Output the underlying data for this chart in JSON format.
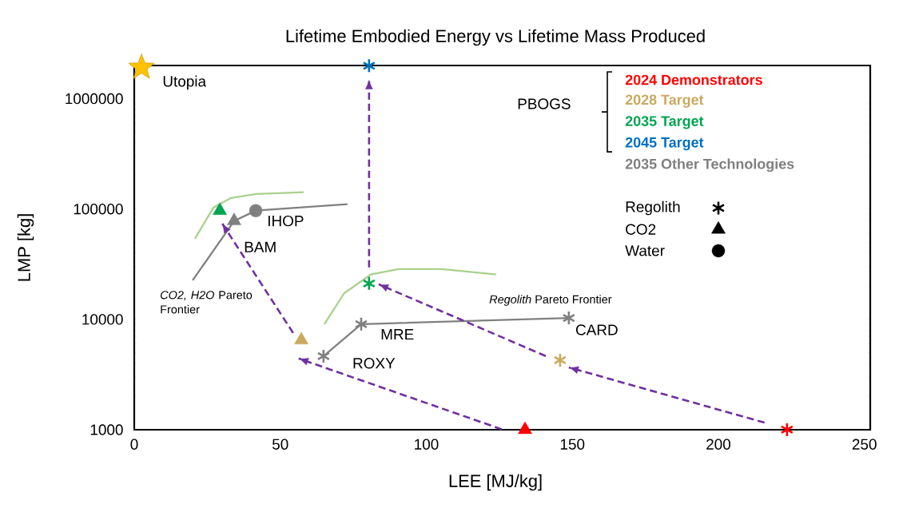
{
  "chart_data": {
    "type": "scatter",
    "title": "Lifetime Embodied Energy vs Lifetime Mass Produced",
    "xlabel": "LEE [MJ/kg]",
    "ylabel": "LMP [kg]",
    "xlim": [
      0,
      252
    ],
    "xticks": [
      0,
      50,
      100,
      150,
      200,
      250
    ],
    "ylim": [
      1000,
      2000000
    ],
    "yticks": [
      1000,
      10000,
      100000,
      1000000
    ],
    "log": "y",
    "grid": false,
    "legend": "top right",
    "series": [
      {
        "type": "line",
        "color": "#a9d18e",
        "marker": "none",
        "line_style": "solid",
        "x": [
          20.8,
          27.1,
          33.1,
          41.8,
          58
        ],
        "values": [
          53900,
          103000,
          126000,
          137000,
          142000
        ]
      },
      {
        "type": "line",
        "color": "#a9d18e",
        "marker": "none",
        "line_style": "solid",
        "x": [
          65.1,
          71.9,
          81,
          90.5,
          105.3,
          123.9
        ],
        "values": [
          9050,
          17300,
          25500,
          28600,
          28600,
          25500
        ]
      },
      {
        "type": "line",
        "color": "#808080",
        "marker": "none",
        "line_style": "solid",
        "x": [
          20,
          34.2,
          41.6,
          73
        ],
        "values": [
          22600,
          78000,
          96700,
          110500
        ]
      },
      {
        "type": "line",
        "color": "#808080",
        "marker": "none",
        "line_style": "solid",
        "x": [
          64.8,
          77.7,
          148.8
        ],
        "values": [
          4640,
          9050,
          10300
        ]
      },
      {
        "type": "line",
        "color": "#7030a0",
        "marker": "none",
        "line_style": "dashed",
        "x": [
          125.8,
          56.3
        ],
        "values": [
          1010,
          4420
        ]
      },
      {
        "type": "line",
        "color": "#7030a0",
        "marker": "none",
        "line_style": "dashed",
        "x": [
          54.4,
          30.1
        ],
        "values": [
          7530,
          74000
        ]
      },
      {
        "type": "line",
        "color": "#7030a0",
        "marker": "none",
        "line_style": "dashed",
        "x": [
          215.8,
          148.8
        ],
        "values": [
          1160,
          3670
        ]
      },
      {
        "type": "line",
        "color": "#7030a0",
        "marker": "none",
        "line_style": "dashed",
        "x": [
          140.9,
          83.7
        ],
        "values": [
          4650,
          20800
        ]
      },
      {
        "type": "line",
        "color": "#7030a0",
        "marker": "none",
        "line_style": "dashed",
        "x": [
          80.4,
          80.4
        ],
        "values": [
          29600,
          1490000
        ]
      },
      {
        "color": "#ffc000",
        "marker": "star",
        "x": [
          2.5
        ],
        "values": [
          1920000
        ]
      },
      {
        "name": "2024 Demonstrators",
        "color": "#ff0000",
        "marker": "cross",
        "x": [
          223.5
        ],
        "values": [
          1000
        ]
      },
      {
        "color": "#ff0000",
        "marker": "triangle",
        "x": [
          133.8
        ],
        "values": [
          1000
        ]
      },
      {
        "name": "2028 Target",
        "color": "#c9a95e",
        "marker": "cross",
        "x": [
          145.8
        ],
        "values": [
          4270
        ]
      },
      {
        "color": "#c9a95e",
        "marker": "triangle",
        "x": [
          57.2
        ],
        "values": [
          6490
        ]
      },
      {
        "name": "2035 Target",
        "color": "#00a550",
        "marker": "cross",
        "x": [
          80.4
        ],
        "values": [
          21200
        ]
      },
      {
        "color": "#00a550",
        "marker": "triangle",
        "x": [
          29.3
        ],
        "values": [
          96700
        ]
      },
      {
        "name": "2045 Target",
        "color": "#0070c0",
        "marker": "cross",
        "x": [
          80.4
        ],
        "values": [
          1990000
        ]
      },
      {
        "name": "2035 Other Technologies",
        "color": "#808080",
        "marker": "cross",
        "x": [
          64.8,
          77.7,
          148.8
        ],
        "values": [
          4640,
          9050,
          10300
        ]
      },
      {
        "color": "#808080",
        "marker": "triangle",
        "x": [
          34.2
        ],
        "values": [
          78000
        ]
      },
      {
        "color": "#808080",
        "marker": "circle",
        "x": [
          41.6
        ],
        "values": [
          96700
        ]
      },
      {
        "name": "Regolith",
        "color": "#000000",
        "marker": "cross"
      },
      {
        "name": "CO2",
        "color": "#000000",
        "marker": "triangle"
      },
      {
        "name": "Water",
        "color": "#000000",
        "marker": "circle"
      }
    ],
    "annotations": [
      "PBOGS",
      "*CO2, H2O* Pareto Frontier",
      "*Regolith* Pareto Frontier",
      {
        "text": "Utopia",
        "x": 2.5,
        "y": 1920000
      },
      {
        "text": "IHOP",
        "x": 41.6,
        "y": 96700
      },
      {
        "text": "BAM",
        "x": 34.2,
        "y": 78000
      },
      {
        "text": "MRE",
        "x": 77.7,
        "y": 9050
      },
      {
        "text": "ROXY",
        "x": 64.8,
        "y": 4640
      },
      {
        "text": "CARD",
        "x": 148.8,
        "y": 10300
      }
    ]
  }
}
